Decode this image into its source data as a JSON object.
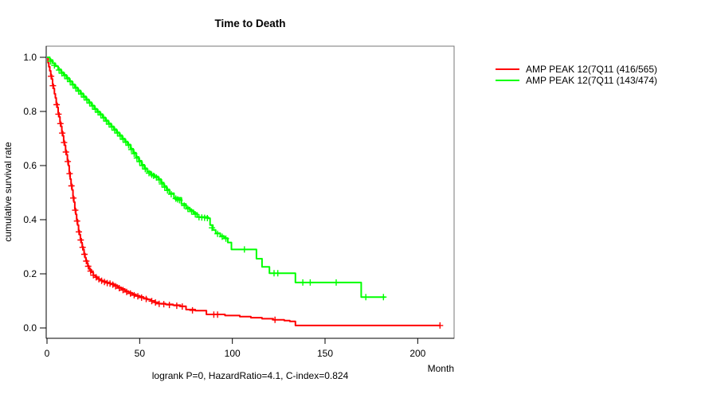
{
  "title": "Time to Death",
  "y_axis_label": "cumulative survival rate",
  "x_unit_label": "Month",
  "annotation": "logrank P=0, HazardRatio=4.1, C-index=0.824",
  "colors": {
    "red": "#ff0000",
    "green": "#00ff00",
    "axis": "#000000",
    "box": "#777777"
  },
  "legend": {
    "items": [
      {
        "label": "AMP PEAK 12(7Q11 (416/565)",
        "color": "#ff0000"
      },
      {
        "label": "AMP PEAK 12(7Q11 (143/474)",
        "color": "#00ff00"
      }
    ]
  },
  "chart_data": {
    "type": "line",
    "subtype": "kaplan-meier-step",
    "title": "Time to Death",
    "xlabel": "Month",
    "ylabel": "cumulative survival rate",
    "xlim": [
      0,
      220
    ],
    "ylim": [
      0,
      1
    ],
    "x_ticks": [
      0,
      50,
      100,
      150,
      200
    ],
    "x_tick_labels": [
      "0",
      "50",
      "100",
      "150",
      "200"
    ],
    "y_ticks": [
      0.0,
      0.2,
      0.4,
      0.6,
      0.8,
      1.0
    ],
    "y_tick_labels": [
      "0.0",
      "0.2",
      "0.4",
      "0.6",
      "0.8",
      "1.0"
    ],
    "grid": false,
    "legend_position": "right-outside",
    "footnote": "logrank P=0, HazardRatio=4.1, C-index=0.824",
    "series": [
      {
        "name": "AMP PEAK 12(7Q11 (416/565)",
        "color": "#ff0000",
        "events_total": "416/565",
        "steps": [
          [
            0,
            1.0
          ],
          [
            0.5,
            0.98
          ],
          [
            1,
            0.965
          ],
          [
            1.5,
            0.95
          ],
          [
            2,
            0.935
          ],
          [
            2.5,
            0.92
          ],
          [
            3,
            0.9
          ],
          [
            3.5,
            0.885
          ],
          [
            4,
            0.865
          ],
          [
            4.5,
            0.85
          ],
          [
            5,
            0.83
          ],
          [
            5.5,
            0.815
          ],
          [
            6,
            0.795
          ],
          [
            6.5,
            0.78
          ],
          [
            7,
            0.76
          ],
          [
            7.5,
            0.745
          ],
          [
            8,
            0.725
          ],
          [
            8.5,
            0.71
          ],
          [
            9,
            0.69
          ],
          [
            9.5,
            0.675
          ],
          [
            10,
            0.655
          ],
          [
            10.5,
            0.64
          ],
          [
            11,
            0.62
          ],
          [
            11.5,
            0.6
          ],
          [
            12,
            0.575
          ],
          [
            12.5,
            0.55
          ],
          [
            13,
            0.53
          ],
          [
            13.5,
            0.51
          ],
          [
            14,
            0.485
          ],
          [
            14.5,
            0.465
          ],
          [
            15,
            0.44
          ],
          [
            15.5,
            0.42
          ],
          [
            16,
            0.4
          ],
          [
            16.5,
            0.38
          ],
          [
            17,
            0.36
          ],
          [
            17.5,
            0.345
          ],
          [
            18,
            0.33
          ],
          [
            18.5,
            0.315
          ],
          [
            19,
            0.3
          ],
          [
            19.5,
            0.29
          ],
          [
            20,
            0.275
          ],
          [
            20.5,
            0.26
          ],
          [
            21,
            0.25
          ],
          [
            21.5,
            0.24
          ],
          [
            22,
            0.23
          ],
          [
            22.5,
            0.222
          ],
          [
            23,
            0.215
          ],
          [
            24,
            0.205
          ],
          [
            25,
            0.195
          ],
          [
            26,
            0.19
          ],
          [
            27,
            0.185
          ],
          [
            28,
            0.18
          ],
          [
            29,
            0.176
          ],
          [
            30,
            0.172
          ],
          [
            32,
            0.168
          ],
          [
            34,
            0.164
          ],
          [
            36,
            0.158
          ],
          [
            38,
            0.15
          ],
          [
            40,
            0.144
          ],
          [
            42,
            0.136
          ],
          [
            44,
            0.13
          ],
          [
            46,
            0.124
          ],
          [
            48,
            0.119
          ],
          [
            50,
            0.115
          ],
          [
            52,
            0.11
          ],
          [
            54,
            0.105
          ],
          [
            56,
            0.1
          ],
          [
            58,
            0.095
          ],
          [
            60,
            0.09
          ],
          [
            64,
            0.087
          ],
          [
            68,
            0.084
          ],
          [
            72,
            0.08
          ],
          [
            75,
            0.068
          ],
          [
            80,
            0.064
          ],
          [
            86,
            0.05
          ],
          [
            96,
            0.046
          ],
          [
            104,
            0.042
          ],
          [
            110,
            0.038
          ],
          [
            116,
            0.034
          ],
          [
            122,
            0.03
          ],
          [
            128,
            0.027
          ],
          [
            131,
            0.024
          ],
          [
            134,
            0.009
          ],
          [
            212,
            0.009
          ]
        ],
        "censors": [
          [
            2.2,
            0.93
          ],
          [
            3.2,
            0.895
          ],
          [
            5.2,
            0.825
          ],
          [
            6.2,
            0.79
          ],
          [
            7.2,
            0.755
          ],
          [
            8.2,
            0.72
          ],
          [
            9.2,
            0.685
          ],
          [
            10.2,
            0.65
          ],
          [
            11.2,
            0.615
          ],
          [
            12.2,
            0.57
          ],
          [
            13.2,
            0.525
          ],
          [
            14.2,
            0.48
          ],
          [
            15.2,
            0.435
          ],
          [
            16.2,
            0.395
          ],
          [
            17.2,
            0.355
          ],
          [
            18.2,
            0.325
          ],
          [
            19.2,
            0.298
          ],
          [
            20.2,
            0.272
          ],
          [
            21.2,
            0.247
          ],
          [
            22.2,
            0.228
          ],
          [
            23.5,
            0.21
          ],
          [
            25,
            0.195
          ],
          [
            26.5,
            0.187
          ],
          [
            28,
            0.18
          ],
          [
            29.5,
            0.174
          ],
          [
            31,
            0.17
          ],
          [
            32.5,
            0.166
          ],
          [
            34,
            0.164
          ],
          [
            35.5,
            0.16
          ],
          [
            37,
            0.154
          ],
          [
            39,
            0.147
          ],
          [
            41,
            0.14
          ],
          [
            43,
            0.133
          ],
          [
            45,
            0.127
          ],
          [
            47,
            0.121
          ],
          [
            49,
            0.117
          ],
          [
            51,
            0.112
          ],
          [
            53.5,
            0.107
          ],
          [
            56.5,
            0.099
          ],
          [
            58.5,
            0.094
          ],
          [
            60.5,
            0.089
          ],
          [
            63,
            0.088
          ],
          [
            66,
            0.085
          ],
          [
            70,
            0.082
          ],
          [
            73,
            0.079
          ],
          [
            78.5,
            0.065
          ],
          [
            90,
            0.049
          ],
          [
            92,
            0.049
          ],
          [
            123,
            0.03
          ],
          [
            212,
            0.009
          ]
        ]
      },
      {
        "name": "AMP PEAK 12(7Q11 (143/474)",
        "color": "#00ff00",
        "events_total": "143/474",
        "steps": [
          [
            0,
            1.0
          ],
          [
            1.5,
            0.99
          ],
          [
            3,
            0.978
          ],
          [
            4.5,
            0.967
          ],
          [
            6,
            0.956
          ],
          [
            7.5,
            0.945
          ],
          [
            9,
            0.935
          ],
          [
            10.5,
            0.924
          ],
          [
            12,
            0.912
          ],
          [
            13.5,
            0.9
          ],
          [
            15,
            0.889
          ],
          [
            16.5,
            0.878
          ],
          [
            18,
            0.867
          ],
          [
            19.5,
            0.856
          ],
          [
            21,
            0.845
          ],
          [
            22.5,
            0.834
          ],
          [
            24,
            0.822
          ],
          [
            25.5,
            0.81
          ],
          [
            27,
            0.8
          ],
          [
            28.5,
            0.79
          ],
          [
            30,
            0.778
          ],
          [
            31.5,
            0.767
          ],
          [
            33,
            0.756
          ],
          [
            34.5,
            0.745
          ],
          [
            36,
            0.734
          ],
          [
            37.5,
            0.723
          ],
          [
            39,
            0.712
          ],
          [
            40.5,
            0.7
          ],
          [
            42,
            0.689
          ],
          [
            43.5,
            0.678
          ],
          [
            45,
            0.662
          ],
          [
            46.5,
            0.648
          ],
          [
            48,
            0.632
          ],
          [
            49.5,
            0.618
          ],
          [
            51,
            0.603
          ],
          [
            52.5,
            0.59
          ],
          [
            54,
            0.578
          ],
          [
            56,
            0.568
          ],
          [
            58,
            0.56
          ],
          [
            60,
            0.55
          ],
          [
            61.5,
            0.537
          ],
          [
            63,
            0.524
          ],
          [
            64.5,
            0.512
          ],
          [
            66,
            0.498
          ],
          [
            68.5,
            0.481
          ],
          [
            72.5,
            0.458
          ],
          [
            75,
            0.445
          ],
          [
            77,
            0.435
          ],
          [
            79,
            0.425
          ],
          [
            81,
            0.41
          ],
          [
            87,
            0.405
          ],
          [
            88,
            0.38
          ],
          [
            89.5,
            0.362
          ],
          [
            91,
            0.35
          ],
          [
            93.5,
            0.34
          ],
          [
            95.5,
            0.332
          ],
          [
            97.5,
            0.316
          ],
          [
            99.5,
            0.29
          ],
          [
            113,
            0.256
          ],
          [
            116,
            0.226
          ],
          [
            120,
            0.202
          ],
          [
            134,
            0.168
          ],
          [
            169.5,
            0.114
          ],
          [
            182.5,
            0.114
          ]
        ],
        "censors": [
          [
            2,
            0.985
          ],
          [
            4,
            0.97
          ],
          [
            6.5,
            0.953
          ],
          [
            8,
            0.941
          ],
          [
            9.5,
            0.932
          ],
          [
            11,
            0.921
          ],
          [
            12.5,
            0.91
          ],
          [
            14,
            0.898
          ],
          [
            15.5,
            0.886
          ],
          [
            17,
            0.875
          ],
          [
            18.5,
            0.864
          ],
          [
            20,
            0.853
          ],
          [
            21.5,
            0.842
          ],
          [
            23,
            0.831
          ],
          [
            24.5,
            0.82
          ],
          [
            26,
            0.808
          ],
          [
            27.5,
            0.797
          ],
          [
            29,
            0.787
          ],
          [
            30.5,
            0.776
          ],
          [
            32,
            0.764
          ],
          [
            33.5,
            0.753
          ],
          [
            35,
            0.742
          ],
          [
            36.5,
            0.731
          ],
          [
            38,
            0.72
          ],
          [
            39.5,
            0.709
          ],
          [
            41,
            0.697
          ],
          [
            42.5,
            0.686
          ],
          [
            44,
            0.675
          ],
          [
            45.5,
            0.659
          ],
          [
            47,
            0.644
          ],
          [
            48.5,
            0.628
          ],
          [
            50,
            0.614
          ],
          [
            51.5,
            0.6
          ],
          [
            53,
            0.587
          ],
          [
            55,
            0.572
          ],
          [
            56.5,
            0.566
          ],
          [
            57.5,
            0.562
          ],
          [
            59,
            0.556
          ],
          [
            60.5,
            0.547
          ],
          [
            62,
            0.532
          ],
          [
            63.5,
            0.52
          ],
          [
            65,
            0.508
          ],
          [
            67,
            0.494
          ],
          [
            69.5,
            0.478
          ],
          [
            70.5,
            0.475
          ],
          [
            71.5,
            0.472
          ],
          [
            74,
            0.452
          ],
          [
            76,
            0.44
          ],
          [
            78,
            0.43
          ],
          [
            80,
            0.42
          ],
          [
            82,
            0.409
          ],
          [
            83.5,
            0.408
          ],
          [
            85,
            0.407
          ],
          [
            86.5,
            0.406
          ],
          [
            89,
            0.37
          ],
          [
            92,
            0.348
          ],
          [
            94.5,
            0.337
          ],
          [
            96.5,
            0.33
          ],
          [
            106.5,
            0.29
          ],
          [
            122.5,
            0.202
          ],
          [
            124.5,
            0.202
          ],
          [
            138,
            0.168
          ],
          [
            142,
            0.168
          ],
          [
            156,
            0.168
          ],
          [
            172,
            0.114
          ],
          [
            181.5,
            0.114
          ]
        ]
      }
    ]
  }
}
